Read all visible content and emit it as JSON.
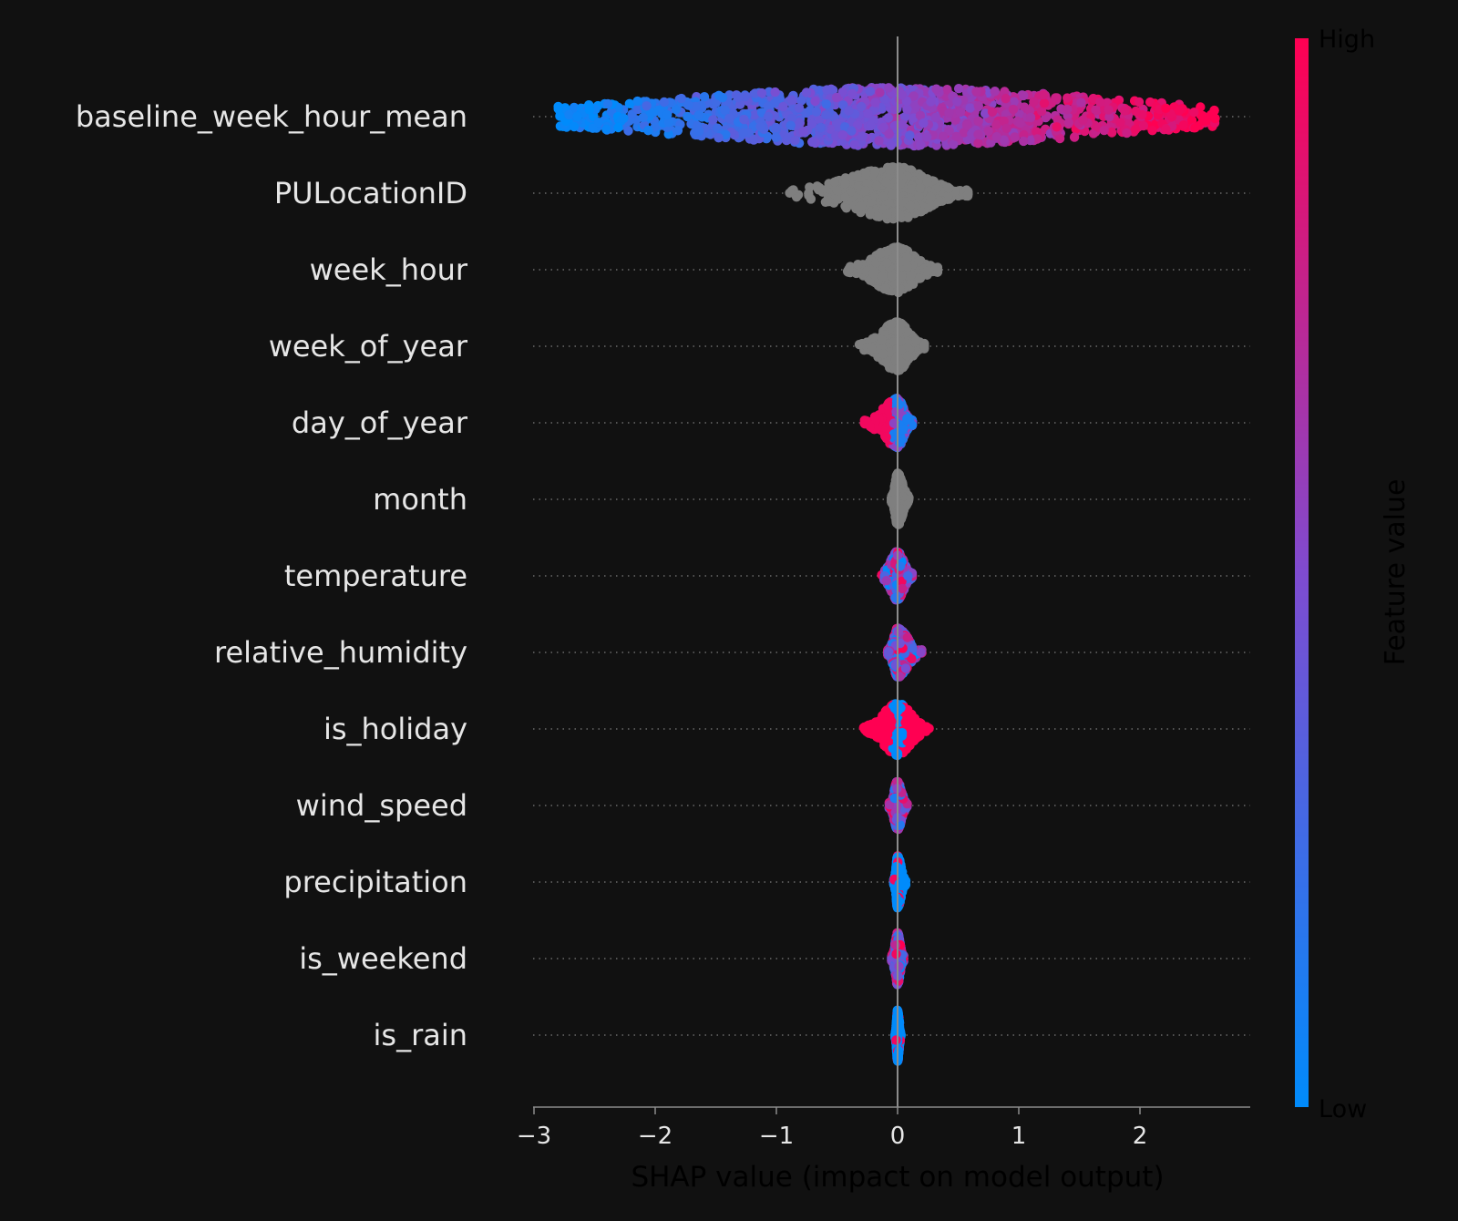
{
  "chart_data": {
    "type": "scatter",
    "subtype": "shap-beeswarm",
    "title": "",
    "xlabel": "SHAP value (impact on model output)",
    "xlim": [
      -3.05,
      2.9
    ],
    "xticks": [
      -3,
      -2,
      -1,
      0,
      1,
      2
    ],
    "xtick_labels": [
      "−3",
      "−2",
      "−1",
      "0",
      "1",
      "2"
    ],
    "colorbar": {
      "label": "Feature value",
      "high_label": "High",
      "low_label": "Low",
      "low_color": "#008bfb",
      "mid_color": "#7f4bd0",
      "high_color": "#ff0052"
    },
    "no_value_color": "#7f7f7f",
    "features": [
      {
        "name": "baseline_week_hour_mean",
        "colored": true,
        "min": -2.8,
        "max": 2.62,
        "spread": 0.95,
        "mode": "gradient"
      },
      {
        "name": "PULocationID",
        "colored": false,
        "min": -1.0,
        "max": 0.58,
        "spread": 0.85,
        "mode": "gray"
      },
      {
        "name": "week_hour",
        "colored": false,
        "min": -0.45,
        "max": 0.33,
        "spread": 0.75,
        "mode": "gray"
      },
      {
        "name": "week_of_year",
        "colored": false,
        "min": -0.32,
        "max": 0.22,
        "spread": 0.8,
        "mode": "gray"
      },
      {
        "name": "day_of_year",
        "colored": true,
        "min": -0.28,
        "max": 0.12,
        "spread": 0.8,
        "mode": "negHigh"
      },
      {
        "name": "month",
        "colored": false,
        "min": -0.05,
        "max": 0.1,
        "spread": 0.85,
        "mode": "gray"
      },
      {
        "name": "temperature",
        "colored": true,
        "min": -0.14,
        "max": 0.12,
        "spread": 0.8,
        "mode": "mixed"
      },
      {
        "name": "relative_humidity",
        "colored": true,
        "min": -0.08,
        "max": 0.2,
        "spread": 0.8,
        "mode": "mixed"
      },
      {
        "name": "is_holiday",
        "colored": true,
        "min": -0.28,
        "max": 0.26,
        "spread": 0.85,
        "mode": "holiday"
      },
      {
        "name": "wind_speed",
        "colored": true,
        "min": -0.07,
        "max": 0.08,
        "spread": 0.8,
        "mode": "mixed"
      },
      {
        "name": "precipitation",
        "colored": true,
        "min": -0.03,
        "max": 0.07,
        "spread": 0.85,
        "mode": "lowMostly"
      },
      {
        "name": "is_weekend",
        "colored": true,
        "min": -0.05,
        "max": 0.05,
        "spread": 0.85,
        "mode": "mixed"
      },
      {
        "name": "is_rain",
        "colored": true,
        "min": -0.02,
        "max": 0.03,
        "spread": 0.85,
        "mode": "lowMostly"
      }
    ]
  }
}
